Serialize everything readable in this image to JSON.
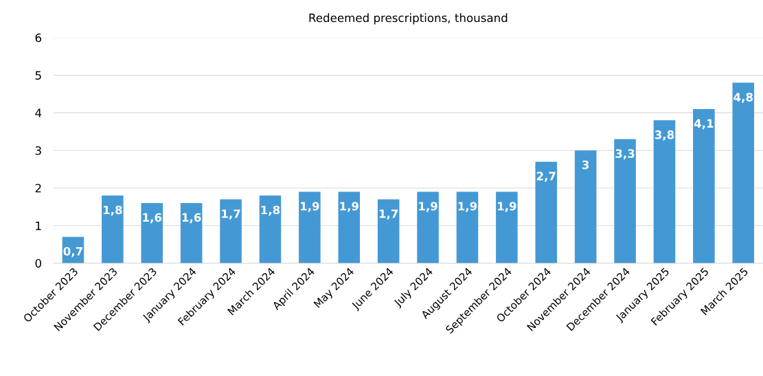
{
  "chart_data": {
    "type": "bar",
    "title": "Redeemed prescriptions, thousand",
    "categories": [
      "October 2023",
      "November 2023",
      "December 2023",
      "January 2024",
      "February 2024",
      "March 2024",
      "April 2024",
      "May 2024",
      "June 2024",
      "July 2024",
      "August 2024",
      "September 2024",
      "October 2024",
      "November 2024",
      "December 2024",
      "January 2025",
      "February 2025",
      "March 2025"
    ],
    "values": [
      0.7,
      1.8,
      1.6,
      1.6,
      1.7,
      1.8,
      1.9,
      1.9,
      1.7,
      1.9,
      1.9,
      1.9,
      2.7,
      3,
      3.3,
      3.8,
      4.1,
      4.8
    ],
    "value_labels": [
      "0,7",
      "1,8",
      "1,6",
      "1,6",
      "1,7",
      "1,8",
      "1,9",
      "1,9",
      "1,7",
      "1,9",
      "1,9",
      "1,9",
      "2,7",
      "3",
      "3,3",
      "3,8",
      "4,1",
      "4,8"
    ],
    "color": "#4499d4",
    "ylim": [
      0,
      6
    ],
    "yticks": [
      0,
      1,
      2,
      3,
      4,
      5,
      6
    ],
    "grid": "y"
  }
}
